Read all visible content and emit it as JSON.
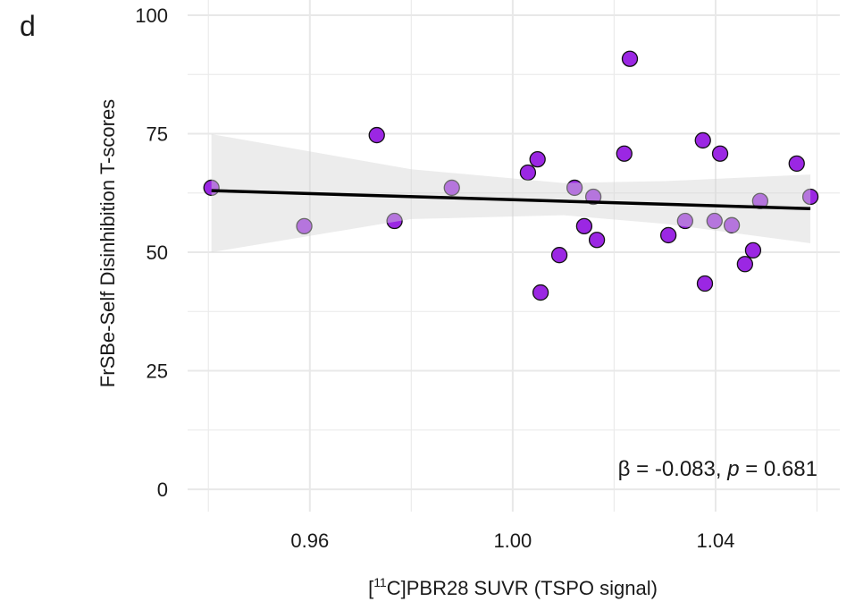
{
  "chart_data": {
    "type": "scatter",
    "panel_label": "d",
    "x_label": {
      "pre": "[",
      "sup": "11",
      "post": "C]PBR28 SUVR (TSPO signal)"
    },
    "y_label": "FrSBe-Self Disinhibition T-scores",
    "annotation": {
      "pre": "β = -0.083, ",
      "p": "p",
      "post": " = 0.681"
    },
    "xlim": [
      0.9359,
      1.0645
    ],
    "ylim": [
      -4.7,
      103.2
    ],
    "xticks": [
      0.96,
      {
        "value": 1.0,
        "label": "1.00"
      },
      1.04
    ],
    "yticks": [
      0,
      25,
      50,
      75,
      100
    ],
    "x_minor": [
      0.94,
      0.98,
      1.02,
      1.06
    ],
    "y_minor": [
      12.5,
      37.5,
      62.5,
      87.5
    ],
    "grid": true,
    "color": "#9b27e3",
    "x": [
      0.9406,
      0.9589,
      0.9732,
      0.9767,
      0.988,
      1.003,
      1.0049,
      1.0055,
      1.0092,
      1.0122,
      1.0141,
      1.0159,
      1.0166,
      1.022,
      1.0231,
      1.0307,
      1.034,
      1.0375,
      1.0379,
      1.0398,
      1.0409,
      1.0432,
      1.0458,
      1.0474,
      1.0488,
      1.056,
      1.0587
    ],
    "y": [
      63.6,
      55.5,
      74.7,
      56.6,
      63.6,
      66.8,
      69.6,
      41.5,
      49.4,
      63.6,
      55.5,
      61.7,
      52.6,
      70.8,
      90.8,
      53.6,
      56.6,
      73.6,
      43.4,
      56.6,
      70.8,
      55.7,
      47.5,
      50.4,
      60.8,
      68.7,
      61.7
    ],
    "fit": {
      "x": [
        0.9406,
        1.0587
      ],
      "y": [
        63.0,
        59.2
      ],
      "color": "#000000"
    },
    "band": {
      "x": [
        0.9406,
        0.98,
        1.01,
        1.03,
        1.0587
      ],
      "upper": [
        74.9,
        67.5,
        64.6,
        65.0,
        66.4
      ],
      "lower": [
        50.0,
        57.0,
        57.8,
        56.0,
        51.9
      ],
      "color": "#d4d4d4"
    }
  }
}
